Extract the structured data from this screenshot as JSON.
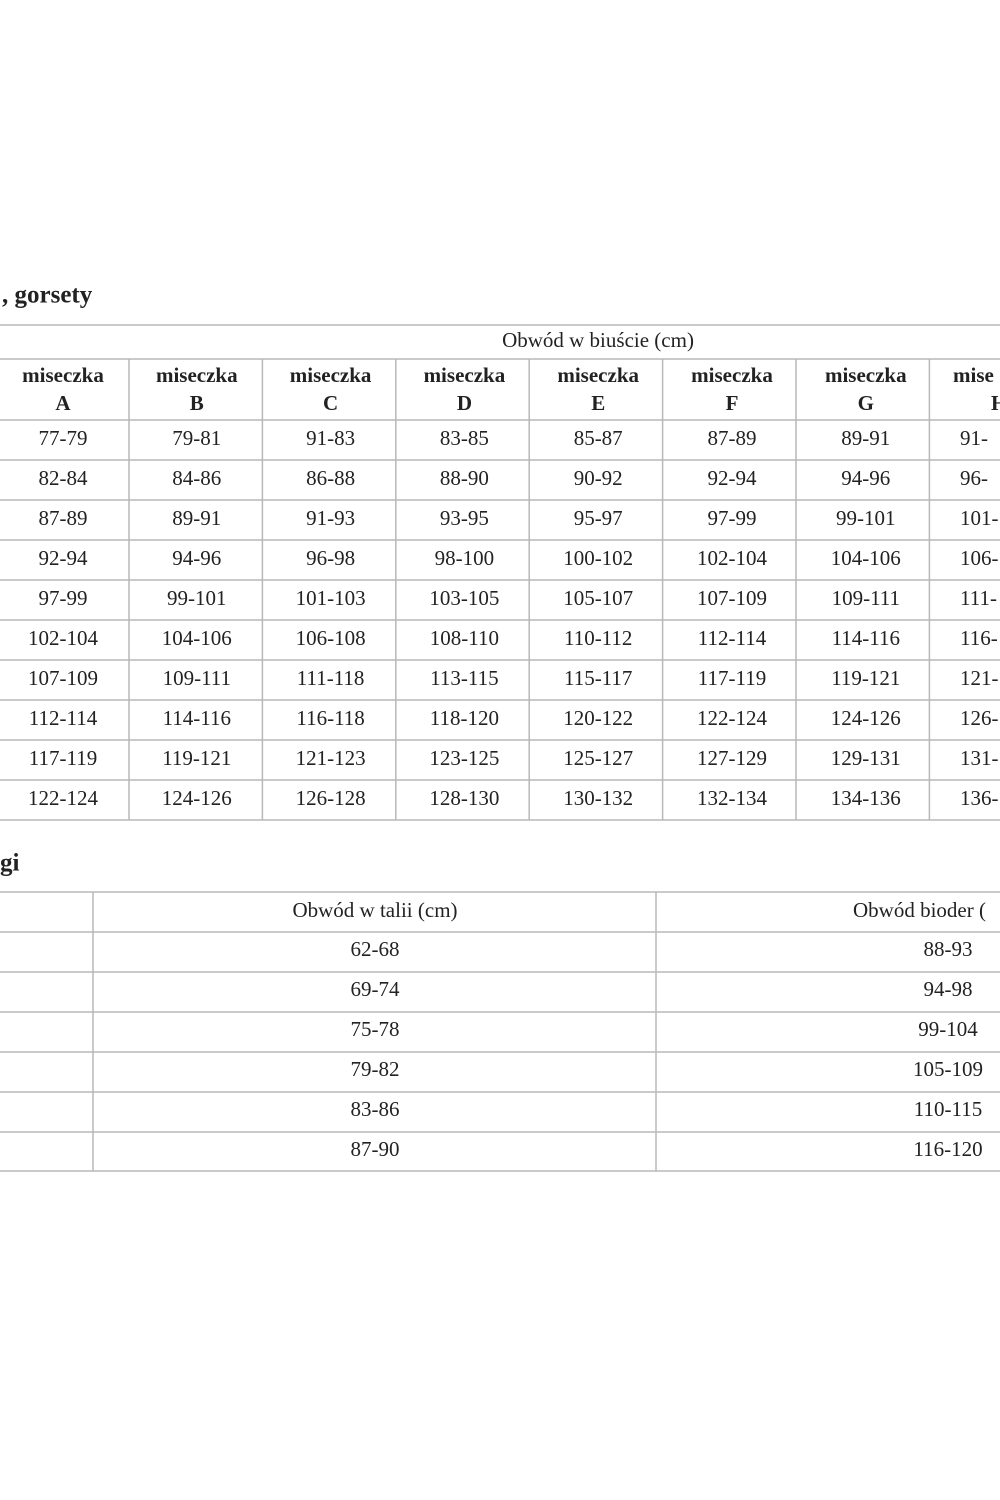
{
  "section1": {
    "title": ", gorsety",
    "header": "Obwód w biuście (cm)",
    "columns": [
      [
        "miseczka",
        "A"
      ],
      [
        "miseczka",
        "B"
      ],
      [
        "miseczka",
        "C"
      ],
      [
        "miseczka",
        "D"
      ],
      [
        "miseczka",
        "E"
      ],
      [
        "miseczka",
        "F"
      ],
      [
        "miseczka",
        "G"
      ],
      [
        "mise",
        "H"
      ]
    ],
    "rows": [
      [
        "77-79",
        "79-81",
        "91-83",
        "83-85",
        "85-87",
        "87-89",
        "89-91",
        "91-"
      ],
      [
        "82-84",
        "84-86",
        "86-88",
        "88-90",
        "90-92",
        "92-94",
        "94-96",
        "96-"
      ],
      [
        "87-89",
        "89-91",
        "91-93",
        "93-95",
        "95-97",
        "97-99",
        "99-101",
        "101-"
      ],
      [
        "92-94",
        "94-96",
        "96-98",
        "98-100",
        "100-102",
        "102-104",
        "104-106",
        "106-"
      ],
      [
        "97-99",
        "99-101",
        "101-103",
        "103-105",
        "105-107",
        "107-109",
        "109-111",
        "111-"
      ],
      [
        "102-104",
        "104-106",
        "106-108",
        "108-110",
        "110-112",
        "112-114",
        "114-116",
        "116-"
      ],
      [
        "107-109",
        "109-111",
        "111-118",
        "113-115",
        "115-117",
        "117-119",
        "119-121",
        "121-"
      ],
      [
        "112-114",
        "114-116",
        "116-118",
        "118-120",
        "120-122",
        "122-124",
        "124-126",
        "126-"
      ],
      [
        "117-119",
        "119-121",
        "121-123",
        "123-125",
        "125-127",
        "127-129",
        "129-131",
        "131-"
      ],
      [
        "122-124",
        "124-126",
        "126-128",
        "128-130",
        "130-132",
        "132-134",
        "134-136",
        "136-"
      ]
    ]
  },
  "section2": {
    "title": "gi",
    "headers": [
      "Obwód w talii (cm)",
      "Obwód bioder ("
    ],
    "rows": [
      [
        "62-68",
        "88-93"
      ],
      [
        "69-74",
        "94-98"
      ],
      [
        "75-78",
        "99-104"
      ],
      [
        "79-82",
        "105-109"
      ],
      [
        "83-86",
        "110-115"
      ],
      [
        "87-90",
        "116-120"
      ]
    ]
  }
}
